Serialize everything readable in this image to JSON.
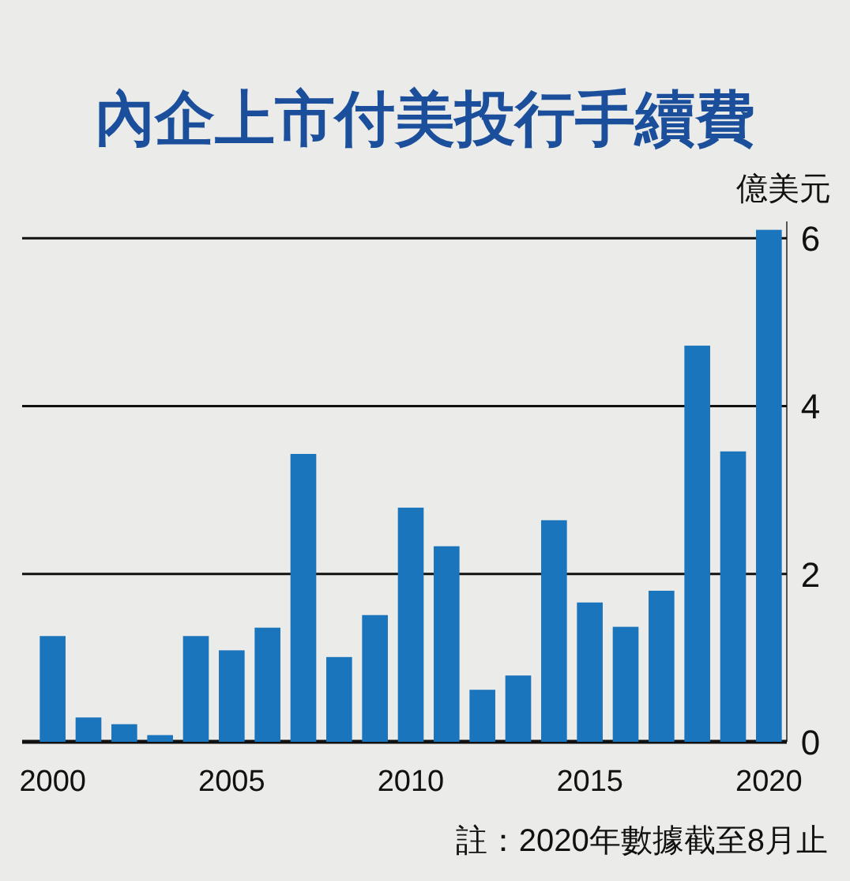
{
  "chart_data": {
    "type": "bar",
    "title": "內企上市付美投行手續費",
    "ylabel": "億美元",
    "categories": [
      "2000",
      null,
      null,
      null,
      null,
      "2005",
      null,
      null,
      null,
      null,
      "2010",
      null,
      null,
      null,
      null,
      "2015",
      null,
      null,
      null,
      null,
      "2020"
    ],
    "values": [
      1.26,
      0.29,
      0.21,
      0.08,
      1.26,
      1.09,
      1.36,
      3.43,
      1.01,
      1.51,
      2.79,
      2.33,
      0.62,
      0.79,
      2.64,
      1.66,
      1.37,
      1.8,
      4.72,
      3.46,
      6.1
    ],
    "color": "#1b75bc",
    "ylim": [
      0,
      6.2
    ],
    "yticks": [
      0,
      2,
      4,
      6
    ],
    "grid": "y",
    "annotations": [
      "註：2020年數據截至8月止"
    ]
  }
}
